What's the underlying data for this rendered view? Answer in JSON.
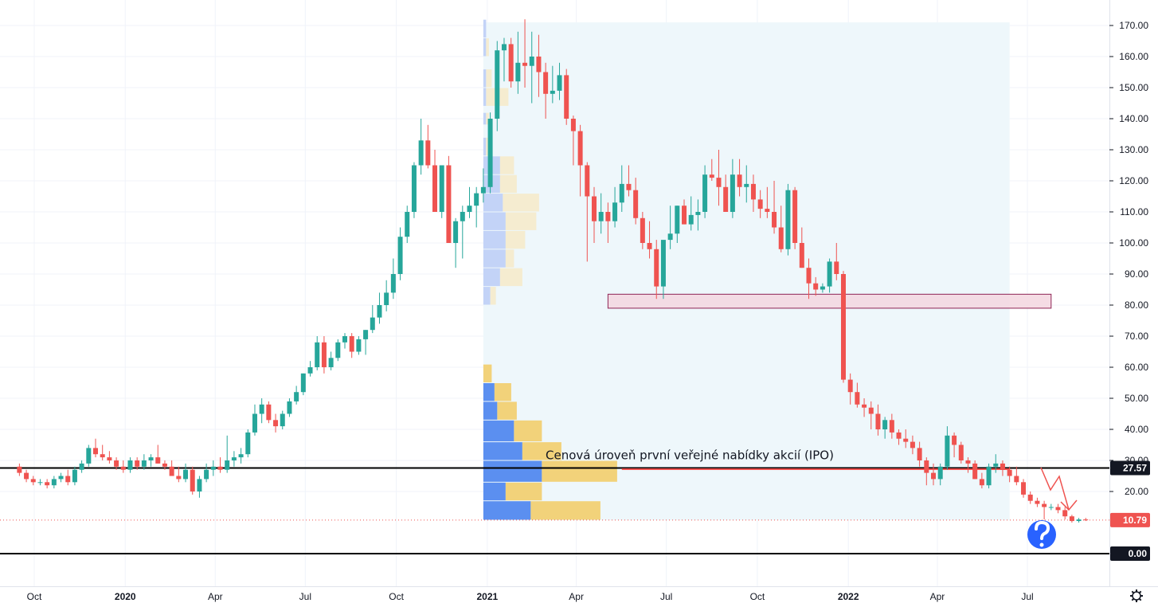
{
  "chart_data": {
    "type": "candlestick",
    "title": "",
    "xlabel": "",
    "ylabel": "",
    "ylim": [
      -4,
      174
    ],
    "y_ticks": [
      "170.00",
      "160.00",
      "150.00",
      "140.00",
      "130.00",
      "120.00",
      "110.00",
      "100.00",
      "90.00",
      "80.00",
      "70.00",
      "60.00",
      "50.00",
      "40.00",
      "30.00",
      "20.00"
    ],
    "time_labels": [
      {
        "label": "Oct",
        "date": "2019-10-01",
        "year": false
      },
      {
        "label": "2020",
        "date": "2020-01-01",
        "year": true
      },
      {
        "label": "Apr",
        "date": "2020-04-01",
        "year": false
      },
      {
        "label": "Jul",
        "date": "2020-07-01",
        "year": false
      },
      {
        "label": "Oct",
        "date": "2020-10-01",
        "year": false
      },
      {
        "label": "2021",
        "date": "2021-01-01",
        "year": true
      },
      {
        "label": "Apr",
        "date": "2021-04-01",
        "year": false
      },
      {
        "label": "Jul",
        "date": "2021-07-01",
        "year": false
      },
      {
        "label": "Oct",
        "date": "2021-10-01",
        "year": false
      },
      {
        "label": "2022",
        "date": "2022-01-01",
        "year": true
      },
      {
        "label": "Apr",
        "date": "2022-04-01",
        "year": false
      },
      {
        "label": "Jul",
        "date": "2022-07-01",
        "year": false
      }
    ],
    "weekly_ohlc_start": "2019-09-16",
    "weekly_ohlc": [
      [
        28,
        29,
        25,
        26
      ],
      [
        26,
        27,
        23,
        24
      ],
      [
        24,
        25,
        22,
        23
      ],
      [
        23,
        24,
        22,
        23
      ],
      [
        23,
        24,
        21,
        22
      ],
      [
        22,
        25,
        21,
        24
      ],
      [
        24,
        26,
        23,
        25
      ],
      [
        25,
        27,
        22,
        23
      ],
      [
        23,
        28,
        22,
        27
      ],
      [
        27,
        30,
        26,
        29
      ],
      [
        29,
        35,
        28,
        34
      ],
      [
        34,
        37,
        31,
        32
      ],
      [
        32,
        35,
        30,
        31
      ],
      [
        31,
        33,
        29,
        30
      ],
      [
        30,
        31,
        27,
        28
      ],
      [
        28,
        30,
        26,
        27
      ],
      [
        27,
        31,
        26,
        30
      ],
      [
        30,
        31,
        27,
        28
      ],
      [
        28,
        32,
        27,
        30
      ],
      [
        30,
        32,
        28,
        31
      ],
      [
        31,
        35,
        29,
        29
      ],
      [
        29,
        30,
        27,
        28
      ],
      [
        28,
        30,
        25,
        25
      ],
      [
        25,
        28,
        23,
        24
      ],
      [
        24,
        29,
        23,
        27
      ],
      [
        27,
        28,
        19,
        20
      ],
      [
        20,
        25,
        18,
        24
      ],
      [
        24,
        29,
        23,
        27
      ],
      [
        27,
        30,
        25,
        28
      ],
      [
        28,
        31,
        26,
        27
      ],
      [
        27,
        38,
        26,
        30
      ],
      [
        30,
        33,
        28,
        31
      ],
      [
        31,
        34,
        29,
        32
      ],
      [
        32,
        40,
        31,
        39
      ],
      [
        39,
        48,
        38,
        45
      ],
      [
        45,
        50,
        42,
        48
      ],
      [
        48,
        49,
        42,
        43
      ],
      [
        43,
        45,
        39,
        41
      ],
      [
        41,
        46,
        40,
        45
      ],
      [
        45,
        50,
        44,
        49
      ],
      [
        49,
        54,
        48,
        52
      ],
      [
        52,
        58,
        51,
        58
      ],
      [
        58,
        62,
        57,
        60
      ],
      [
        60,
        70,
        59,
        68
      ],
      [
        68,
        70,
        58,
        60
      ],
      [
        60,
        65,
        59,
        63
      ],
      [
        63,
        69,
        62,
        68
      ],
      [
        68,
        71,
        66,
        70
      ],
      [
        70,
        71,
        63,
        65
      ],
      [
        65,
        70,
        64,
        69
      ],
      [
        69,
        72,
        64,
        72
      ],
      [
        72,
        80,
        71,
        76
      ],
      [
        76,
        84,
        74,
        80
      ],
      [
        80,
        88,
        78,
        84
      ],
      [
        84,
        95,
        82,
        90
      ],
      [
        90,
        105,
        88,
        102
      ],
      [
        102,
        112,
        100,
        110
      ],
      [
        110,
        126,
        108,
        125
      ],
      [
        125,
        140,
        122,
        133
      ],
      [
        133,
        138,
        124,
        125
      ],
      [
        125,
        130,
        110,
        110
      ],
      [
        110,
        121,
        108,
        125
      ],
      [
        125,
        128,
        105,
        100
      ],
      [
        100,
        108,
        92,
        107
      ],
      [
        107,
        112,
        95,
        110
      ],
      [
        110,
        118,
        108,
        112
      ],
      [
        112,
        118,
        105,
        116
      ],
      [
        116,
        124,
        113,
        118
      ],
      [
        118,
        142,
        116,
        140
      ],
      [
        140,
        165,
        136,
        162
      ],
      [
        162,
        166,
        152,
        164
      ],
      [
        164,
        166,
        150,
        152
      ],
      [
        152,
        168,
        148,
        158
      ],
      [
        158,
        172,
        150,
        157
      ],
      [
        157,
        168,
        145,
        160
      ],
      [
        160,
        167,
        147,
        155
      ],
      [
        155,
        158,
        140,
        148
      ],
      [
        148,
        157,
        145,
        149
      ],
      [
        149,
        158,
        146,
        154
      ],
      [
        154,
        156,
        138,
        140
      ],
      [
        140,
        141,
        125,
        136
      ],
      [
        136,
        138,
        115,
        125
      ],
      [
        125,
        126,
        94,
        115
      ],
      [
        115,
        118,
        100,
        107
      ],
      [
        107,
        116,
        103,
        110
      ],
      [
        110,
        113,
        100,
        107
      ],
      [
        107,
        118,
        105,
        113
      ],
      [
        113,
        125,
        110,
        119
      ],
      [
        119,
        125,
        115,
        117
      ],
      [
        117,
        121,
        106,
        108
      ],
      [
        108,
        110,
        98,
        100
      ],
      [
        100,
        107,
        95,
        98
      ],
      [
        98,
        101,
        82,
        86
      ],
      [
        86,
        100,
        82,
        101
      ],
      [
        101,
        112,
        98,
        103
      ],
      [
        103,
        112,
        100,
        112
      ],
      [
        112,
        114,
        106,
        106
      ],
      [
        106,
        115,
        104,
        109
      ],
      [
        109,
        114,
        104,
        110
      ],
      [
        110,
        125,
        108,
        122
      ],
      [
        122,
        127,
        120,
        121
      ],
      [
        121,
        130,
        112,
        118
      ],
      [
        118,
        122,
        110,
        110
      ],
      [
        110,
        127,
        108,
        122
      ],
      [
        122,
        127,
        115,
        118
      ],
      [
        118,
        125,
        113,
        119
      ],
      [
        119,
        122,
        110,
        114
      ],
      [
        114,
        117,
        108,
        111
      ],
      [
        111,
        118,
        108,
        110
      ],
      [
        110,
        120,
        103,
        105
      ],
      [
        105,
        112,
        97,
        98
      ],
      [
        98,
        119,
        96,
        117
      ],
      [
        117,
        118,
        98,
        100
      ],
      [
        100,
        105,
        92,
        92
      ],
      [
        92,
        95,
        82,
        87
      ],
      [
        87,
        89,
        83,
        85
      ],
      [
        85,
        87,
        84,
        86
      ],
      [
        86,
        95,
        84,
        94
      ],
      [
        94,
        100,
        88,
        90
      ],
      [
        90,
        91,
        55,
        56
      ],
      [
        56,
        58,
        48,
        52
      ],
      [
        52,
        55,
        47,
        48
      ],
      [
        48,
        50,
        44,
        47
      ],
      [
        47,
        49,
        40,
        45
      ],
      [
        45,
        48,
        38,
        40
      ],
      [
        40,
        44,
        37,
        43
      ],
      [
        43,
        45,
        37,
        39
      ],
      [
        39,
        40,
        35,
        37
      ],
      [
        37,
        40,
        34,
        36
      ],
      [
        36,
        38,
        32,
        34
      ],
      [
        34,
        36,
        28,
        30
      ],
      [
        30,
        31,
        22,
        26
      ],
      [
        26,
        29,
        22,
        24
      ],
      [
        24,
        29,
        22,
        28
      ],
      [
        28,
        41,
        27,
        38
      ],
      [
        38,
        39,
        31,
        35
      ],
      [
        35,
        36,
        29,
        30
      ],
      [
        30,
        31,
        26,
        29
      ],
      [
        29,
        30,
        24,
        24
      ],
      [
        24,
        26,
        21,
        22
      ],
      [
        22,
        29,
        21,
        28
      ],
      [
        28,
        32,
        26,
        29
      ],
      [
        29,
        30,
        25,
        27
      ],
      [
        27,
        28,
        23,
        25
      ],
      [
        25,
        28,
        22,
        23
      ],
      [
        23,
        24,
        18,
        19
      ],
      [
        19,
        20,
        16,
        17
      ],
      [
        17,
        18,
        15,
        16
      ],
      [
        16,
        17,
        11,
        15
      ],
      [
        15,
        16,
        14,
        15
      ],
      [
        15,
        16,
        13,
        14
      ],
      [
        14,
        15,
        11,
        12
      ],
      [
        12,
        12.5,
        10,
        10.5
      ],
      [
        10.5,
        11.5,
        10,
        11
      ],
      [
        11,
        11.5,
        10.5,
        10.8
      ]
    ],
    "volume_profile_upper": [
      {
        "low": 80,
        "high": 86,
        "a": 2.5,
        "b": 2
      },
      {
        "low": 86,
        "high": 92,
        "a": 6,
        "b": 8
      },
      {
        "low": 92,
        "high": 98,
        "a": 8,
        "b": 3
      },
      {
        "low": 98,
        "high": 104,
        "a": 8,
        "b": 7
      },
      {
        "low": 104,
        "high": 110,
        "a": 8,
        "b": 11
      },
      {
        "low": 110,
        "high": 116,
        "a": 7,
        "b": 13
      },
      {
        "low": 116,
        "high": 122,
        "a": 6,
        "b": 6
      },
      {
        "low": 122,
        "high": 128,
        "a": 6,
        "b": 5
      },
      {
        "low": 128,
        "high": 134,
        "a": 1,
        "b": 2
      },
      {
        "low": 138,
        "high": 142,
        "a": 1,
        "b": 1
      },
      {
        "low": 144,
        "high": 150,
        "a": 1,
        "b": 8
      },
      {
        "low": 150,
        "high": 156,
        "a": 1,
        "b": 2
      },
      {
        "low": 160,
        "high": 166,
        "a": 1,
        "b": 1
      },
      {
        "low": 166,
        "high": 172,
        "a": 1,
        "b": 0
      }
    ],
    "volume_profile_lower": [
      {
        "low": 10.79,
        "high": 17,
        "a": 17,
        "b": 25
      },
      {
        "low": 17,
        "high": 23,
        "a": 8,
        "b": 13
      },
      {
        "low": 23,
        "high": 30,
        "a": 21,
        "b": 27
      },
      {
        "low": 30,
        "high": 36,
        "a": 14,
        "b": 14
      },
      {
        "low": 36,
        "high": 43,
        "a": 11,
        "b": 10
      },
      {
        "low": 43,
        "high": 49,
        "a": 5,
        "b": 7
      },
      {
        "low": 49,
        "high": 55,
        "a": 4,
        "b": 6
      },
      {
        "low": 55,
        "high": 61,
        "a": 0,
        "b": 3
      }
    ],
    "zones": [
      {
        "name": "resistance-zone",
        "date_start": "2021-05-03",
        "date_end": "2022-07-25",
        "low": 79,
        "high": 83.5
      }
    ],
    "levels": [
      {
        "name": "ipo-level",
        "value": 27.57
      },
      {
        "name": "zero-level",
        "value": 0
      }
    ],
    "shaded_range": {
      "date_start": "2020-12-28",
      "date_end": "2022-06-13",
      "low": 10.79,
      "high": 171
    },
    "current_price": 10.79,
    "price_badges": [
      {
        "name": "ipo-price-badge",
        "label": "27.57",
        "value": 27.57,
        "color": "#131722"
      },
      {
        "name": "zero-price-badge",
        "label": "0.00",
        "value": 0,
        "color": "#131722"
      },
      {
        "name": "current-price-badge",
        "label": "10.79",
        "value": 10.79,
        "color": "#ef5350"
      }
    ],
    "annotation": {
      "text": "Cenová úroveň první veřejné nabídky akcií (IPO)"
    },
    "colors": {
      "up": "#26a69a",
      "down": "#ef5350",
      "grid": "#f0f3fa",
      "shade": "#eef7fb",
      "vp_a": "#5b8ff0",
      "vp_b": "#f2d27a",
      "vp_a_upper": "#c3d3f7",
      "vp_b_upper": "#f5ecd0",
      "zone_fill": "#f3d6df",
      "zone_stroke": "#8e2454",
      "badge_help": "#2962ff"
    }
  }
}
